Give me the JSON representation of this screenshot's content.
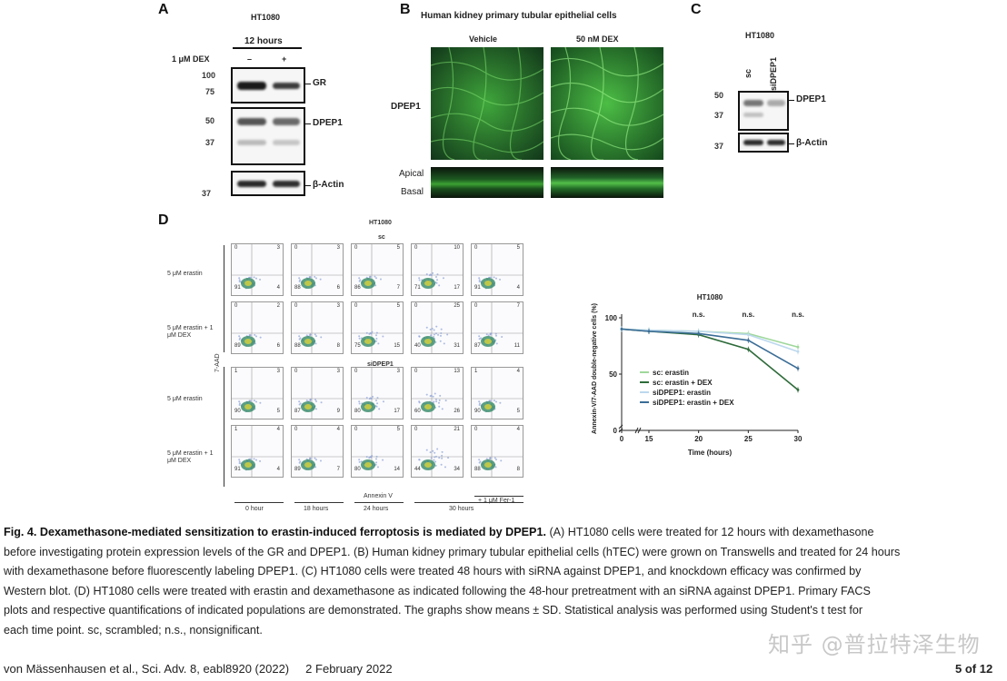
{
  "panelA": {
    "letter": "A",
    "cell_line": "HT1080",
    "time": "12 hours",
    "treatment_label": "1 μM DEX",
    "lane_minus": "–",
    "lane_plus": "+",
    "mw_100": "100",
    "mw_75": "75",
    "mw_50": "50",
    "mw_37a": "37",
    "mw_37b": "37",
    "label_gr": "GR",
    "label_dpep1": "DPEP1",
    "label_actin": "β-Actin"
  },
  "panelB": {
    "letter": "B",
    "title": "Human kidney primary tubular epithelial cells",
    "col_vehicle": "Vehicle",
    "col_dex": "50 nM DEX",
    "row_label": "DPEP1",
    "apical": "Apical",
    "basal": "Basal"
  },
  "panelC": {
    "letter": "C",
    "cell_line": "HT1080",
    "lane_sc": "sc",
    "lane_si": "siDPEP1",
    "mw_50": "50",
    "mw_37a": "37",
    "mw_37b": "37",
    "label_dpep1": "DPEP1",
    "label_actin": "β-Actin"
  },
  "panelD": {
    "letter": "D",
    "cell_line": "HT1080",
    "group_sc": "sc",
    "group_si": "siDPEP1",
    "row_labels": [
      "5 μM erastin",
      "5 μM erastin + 1 μM DEX",
      "5 μM erastin",
      "5 μM erastin + 1 μM DEX"
    ],
    "y_axis": "7-AAD",
    "x_axis": "Annexin V",
    "time_labels": [
      "0 hour",
      "18 hours",
      "24 hours",
      "30 hours",
      "+ 1 μM Fer-1"
    ],
    "quadrant_values": [
      [
        [
          "0",
          "3",
          "91",
          "4"
        ],
        [
          "0",
          "3",
          "88",
          "6"
        ],
        [
          "0",
          "5",
          "86",
          "7"
        ],
        [
          "0",
          "10",
          "71",
          "17"
        ],
        [
          "0",
          "5",
          "91",
          "4"
        ]
      ],
      [
        [
          "0",
          "2",
          "89",
          "6"
        ],
        [
          "0",
          "3",
          "88",
          "8"
        ],
        [
          "0",
          "5",
          "75",
          "15"
        ],
        [
          "0",
          "25",
          "40",
          "31"
        ],
        [
          "0",
          "7",
          "87",
          "11"
        ]
      ],
      [
        [
          "1",
          "3",
          "90",
          "5"
        ],
        [
          "0",
          "3",
          "87",
          "9"
        ],
        [
          "0",
          "3",
          "80",
          "17"
        ],
        [
          "0",
          "13",
          "60",
          "26"
        ],
        [
          "1",
          "4",
          "90",
          "5"
        ]
      ],
      [
        [
          "1",
          "4",
          "91",
          "4"
        ],
        [
          "0",
          "4",
          "89",
          "7"
        ],
        [
          "0",
          "5",
          "80",
          "14"
        ],
        [
          "0",
          "21",
          "44",
          "34"
        ],
        [
          "0",
          "4",
          "88",
          "8"
        ]
      ]
    ]
  },
  "chart_data": {
    "type": "line",
    "title": "HT1080",
    "xlabel": "Time (hours)",
    "ylabel": "Annexin-V/7-AAD double-negative cells (%)",
    "x_ticks": [
      "0",
      "15",
      "20",
      "25",
      "30"
    ],
    "y_ticks": [
      "0",
      "50",
      "100"
    ],
    "ylim": [
      0,
      100
    ],
    "significance_labels": [
      "n.s.",
      "n.s.",
      "n.s."
    ],
    "significance_x": [
      18,
      24,
      30
    ],
    "x": [
      0,
      12,
      18,
      24,
      30
    ],
    "series": [
      {
        "name": "sc: erastin",
        "color": "#9fd89b",
        "values": [
          90,
          89,
          88,
          86,
          74
        ]
      },
      {
        "name": "sc: erastin + DEX",
        "color": "#2e6b3a",
        "values": [
          90,
          88,
          85,
          72,
          36
        ]
      },
      {
        "name": "siDPEP1: erastin",
        "color": "#bcd8ee",
        "values": [
          90,
          89,
          88,
          85,
          70
        ]
      },
      {
        "name": "siDPEP1: erastin + DEX",
        "color": "#3b6d96",
        "values": [
          90,
          88,
          86,
          80,
          55
        ]
      }
    ]
  },
  "caption": {
    "figlabel": "Fig. 4. Dexamethasone-mediated sensitization to erastin-induced ferroptosis is mediated by DPEP1.",
    "line1": " (A) HT1080 cells were treated for 12 hours with dexamethasone",
    "line2": "before investigating protein expression levels of the GR and DPEP1. (B) Human kidney primary tubular epithelial cells (hTEC) were grown on Transwells and treated for 24 hours",
    "line3": "with dexamethasone before fluorescently labeling DPEP1. (C) HT1080 cells were treated 48 hours with siRNA against DPEP1, and knockdown efficacy was confirmed by",
    "line4": "Western blot. (D) HT1080 cells were treated with erastin and dexamethasone as indicated following the 48-hour pretreatment with an siRNA against DPEP1. Primary FACS",
    "line5": "plots and respective quantifications of indicated populations are demonstrated. The graphs show means ± SD. Statistical analysis was performed using Student's t test for",
    "line6": "each time point. sc, scrambled; n.s., nonsignificant."
  },
  "footer": {
    "citation": "von Mässenhausen et al., Sci. Adv. 8, eabl8920 (2022)     2 February 2022",
    "page": "5 of 12"
  },
  "watermark": "知乎 @普拉特泽生物"
}
